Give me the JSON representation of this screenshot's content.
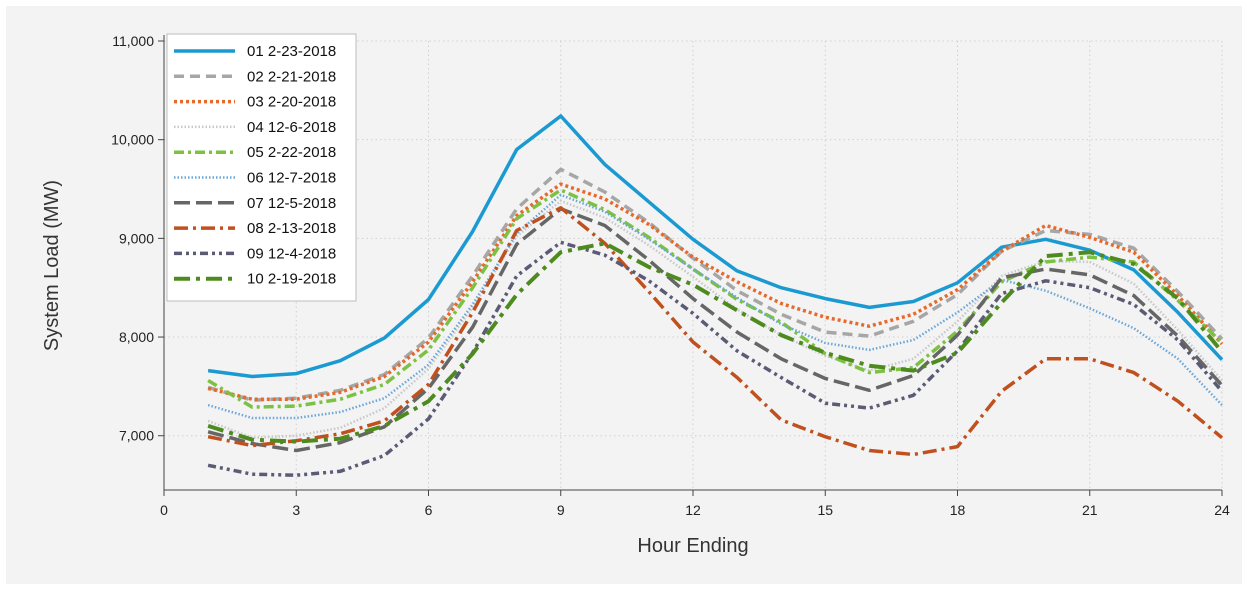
{
  "chart_data": {
    "type": "line",
    "xlabel": "Hour Ending",
    "ylabel": "System Load (MW)",
    "xlim": [
      0,
      24
    ],
    "ylim": [
      6450,
      11000
    ],
    "xticks": [
      0,
      3,
      6,
      9,
      12,
      15,
      18,
      21,
      24
    ],
    "xtick_labels": [
      "0",
      "3",
      "6",
      "9",
      "12",
      "15",
      "18",
      "21",
      "24"
    ],
    "yticks": [
      7000,
      8000,
      9000,
      10000,
      11000
    ],
    "ytick_labels": [
      "7,000",
      "8,000",
      "9,000",
      "10,000",
      "11,000"
    ],
    "grid": true,
    "legend_position": "top-left",
    "x": [
      1,
      2,
      3,
      4,
      5,
      6,
      7,
      8,
      9,
      10,
      11,
      12,
      13,
      14,
      15,
      16,
      17,
      18,
      19,
      20,
      21,
      22,
      23,
      24
    ],
    "series": [
      {
        "name": "01 2-23-2018",
        "color": "#1b9ad2",
        "dash": "solid",
        "values": [
          7660,
          7600,
          7630,
          7760,
          7990,
          8380,
          9070,
          9900,
          10240,
          9750,
          9370,
          8990,
          8670,
          8500,
          8390,
          8300,
          8360,
          8550,
          8910,
          8990,
          8880,
          8680,
          8250,
          7770
        ]
      },
      {
        "name": "02 2-21-2018",
        "color": "#a6a6a6",
        "dash": "dash",
        "values": [
          7490,
          7360,
          7380,
          7460,
          7620,
          7990,
          8620,
          9300,
          9700,
          9470,
          9160,
          8800,
          8470,
          8230,
          8050,
          8010,
          8160,
          8430,
          8870,
          9080,
          9040,
          8900,
          8460,
          7980
        ]
      },
      {
        "name": "03 2-20-2018",
        "color": "#e56a2b",
        "dash": "dot",
        "values": [
          7480,
          7370,
          7370,
          7440,
          7600,
          7950,
          8560,
          9230,
          9550,
          9400,
          9140,
          8810,
          8560,
          8340,
          8200,
          8110,
          8230,
          8480,
          8870,
          9130,
          9010,
          8860,
          8420,
          7930
        ]
      },
      {
        "name": "04 12-6-2018",
        "color": "#c8c8c8",
        "dash": "finedot",
        "values": [
          7150,
          6980,
          7000,
          7080,
          7280,
          7680,
          8300,
          9020,
          9380,
          9210,
          8930,
          8610,
          8280,
          8020,
          7810,
          7660,
          7780,
          8160,
          8620,
          8770,
          8760,
          8540,
          8070,
          7560
        ]
      },
      {
        "name": "05 2-22-2018",
        "color": "#7cc142",
        "dash": "dashdot",
        "values": [
          7560,
          7290,
          7300,
          7370,
          7520,
          7870,
          8500,
          9200,
          9490,
          9290,
          9010,
          8690,
          8380,
          8150,
          7830,
          7640,
          7690,
          8060,
          8560,
          8760,
          8810,
          8760,
          8370,
          7940
        ]
      },
      {
        "name": "06 12-7-2018",
        "color": "#6aa6d8",
        "dash": "finedot",
        "values": [
          7310,
          7180,
          7180,
          7240,
          7380,
          7720,
          8330,
          9050,
          9440,
          9270,
          8990,
          8690,
          8400,
          8130,
          7940,
          7870,
          7970,
          8250,
          8580,
          8470,
          8290,
          8090,
          7780,
          7310
        ]
      },
      {
        "name": "07 12-5-2018",
        "color": "#666666",
        "dash": "longdash",
        "values": [
          7040,
          6920,
          6850,
          6930,
          7090,
          7480,
          8100,
          8940,
          9300,
          9130,
          8780,
          8390,
          8050,
          7780,
          7580,
          7460,
          7610,
          8020,
          8600,
          8690,
          8630,
          8420,
          8010,
          7510
        ]
      },
      {
        "name": "08 2-13-2018",
        "color": "#c0501d",
        "dash": "longdashdot",
        "values": [
          6990,
          6900,
          6950,
          7020,
          7150,
          7520,
          8250,
          9080,
          9310,
          8950,
          8460,
          7950,
          7590,
          7160,
          6990,
          6850,
          6810,
          6890,
          7450,
          7780,
          7780,
          7640,
          7350,
          6980
        ]
      },
      {
        "name": "09 12-4-2018",
        "color": "#5b5b76",
        "dash": "dashdotdot",
        "values": [
          6700,
          6610,
          6600,
          6640,
          6800,
          7170,
          7840,
          8620,
          8960,
          8830,
          8570,
          8240,
          7860,
          7590,
          7330,
          7280,
          7410,
          7860,
          8440,
          8570,
          8500,
          8330,
          7970,
          7450
        ]
      },
      {
        "name": "10 2-19-2018",
        "color": "#4e8b1f",
        "dash": "longdashdotbold",
        "values": [
          7100,
          6960,
          6940,
          6970,
          7100,
          7350,
          7830,
          8430,
          8860,
          8950,
          8710,
          8530,
          8270,
          8020,
          7840,
          7710,
          7660,
          7840,
          8350,
          8820,
          8860,
          8740,
          8390,
          7850
        ]
      }
    ]
  }
}
